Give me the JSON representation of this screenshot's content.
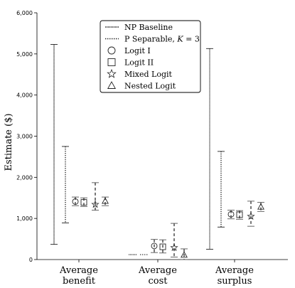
{
  "chart_data": {
    "type": "errorbar",
    "title": "",
    "xlabel": "",
    "ylabel": "Estimate ($)",
    "ylim": [
      0,
      6000
    ],
    "yticks": [
      0,
      1000,
      2000,
      3000,
      4000,
      5000,
      6000
    ],
    "ytick_labels": [
      "0",
      "1,000",
      "2,000",
      "3,000",
      "4,000",
      "5,000",
      "6,000"
    ],
    "categories": [
      {
        "line1": "Average",
        "line2": "benefit"
      },
      {
        "line1": "Average",
        "line2": "cost"
      },
      {
        "line1": "Average",
        "line2": "surplus"
      }
    ],
    "legend_position": "top-center",
    "series": [
      {
        "name": "NP Baseline",
        "style": "dense-dotted",
        "marker": "none",
        "values": [
          {
            "lo": 370,
            "hi": 5230,
            "est": null
          },
          {
            "lo": 120,
            "hi": 120,
            "est": null
          },
          {
            "lo": 250,
            "hi": 5130,
            "est": null
          }
        ]
      },
      {
        "name": "P Separable, K = 3",
        "legend_label": {
          "prefix": "P Separable, ",
          "var": "K",
          "suffix": " = 3"
        },
        "style": "dotted",
        "marker": "none",
        "values": [
          {
            "lo": 890,
            "hi": 2750,
            "est": null
          },
          {
            "lo": 120,
            "hi": 120,
            "est": null
          },
          {
            "lo": 790,
            "hi": 2630,
            "est": null
          }
        ]
      },
      {
        "name": "Logit I",
        "style": "dashed",
        "marker": "circle",
        "values": [
          {
            "lo": 1310,
            "hi": 1520,
            "est": 1410
          },
          {
            "lo": 170,
            "hi": 490,
            "est": 330
          },
          {
            "lo": 990,
            "hi": 1200,
            "est": 1100
          }
        ]
      },
      {
        "name": "Logit II",
        "style": "dashed",
        "marker": "square",
        "values": [
          {
            "lo": 1290,
            "hi": 1500,
            "est": 1390
          },
          {
            "lo": 160,
            "hi": 480,
            "est": 310
          },
          {
            "lo": 980,
            "hi": 1190,
            "est": 1090
          }
        ]
      },
      {
        "name": "Mixed Logit",
        "style": "dashed",
        "marker": "star",
        "values": [
          {
            "lo": 1200,
            "hi": 1870,
            "est": 1340
          },
          {
            "lo": 60,
            "hi": 880,
            "est": 290
          },
          {
            "lo": 810,
            "hi": 1420,
            "est": 1050
          }
        ]
      },
      {
        "name": "Nested Logit",
        "style": "dashed",
        "marker": "triangle",
        "values": [
          {
            "lo": 1310,
            "hi": 1520,
            "est": 1420
          },
          {
            "lo": 0,
            "hi": 260,
            "est": 110
          },
          {
            "lo": 1170,
            "hi": 1390,
            "est": 1280
          }
        ]
      }
    ]
  }
}
